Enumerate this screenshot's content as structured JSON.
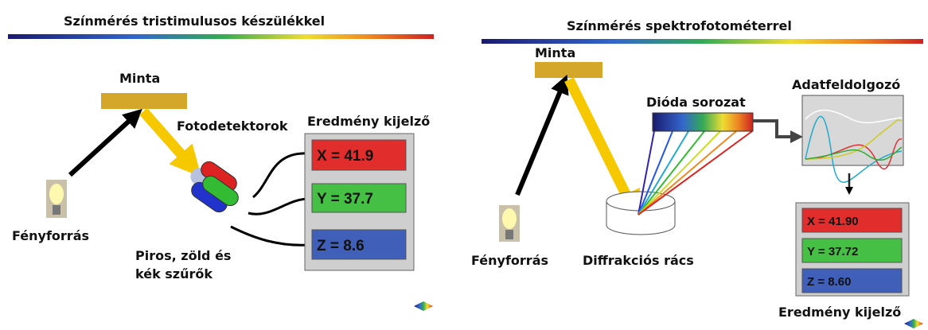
{
  "panels": [
    {
      "title": "Színmérés tristimulusos készülékkel",
      "sample": "Minta",
      "detectors": "Fotodetektorok",
      "display_title": "Eredmény kijelző",
      "readings": [
        "X = 41.9",
        "Y = 37.7",
        "Z = 8.6"
      ],
      "light_source": "Fényforrás",
      "filters": [
        "Piros, zöld és",
        "kék szűrők"
      ]
    },
    {
      "title": "Színmérés spektrofotométerrel",
      "sample": "Minta",
      "diode_array": "Dióda sorozat",
      "processor": "Adatfeldolgozó",
      "readings": [
        "X = 41.90",
        "Y = 37.72",
        "Z = 8.60"
      ],
      "light_source": "Fényforrás",
      "grating": "Diffrakciós rács",
      "display_title": "Eredmény kijelző"
    }
  ]
}
